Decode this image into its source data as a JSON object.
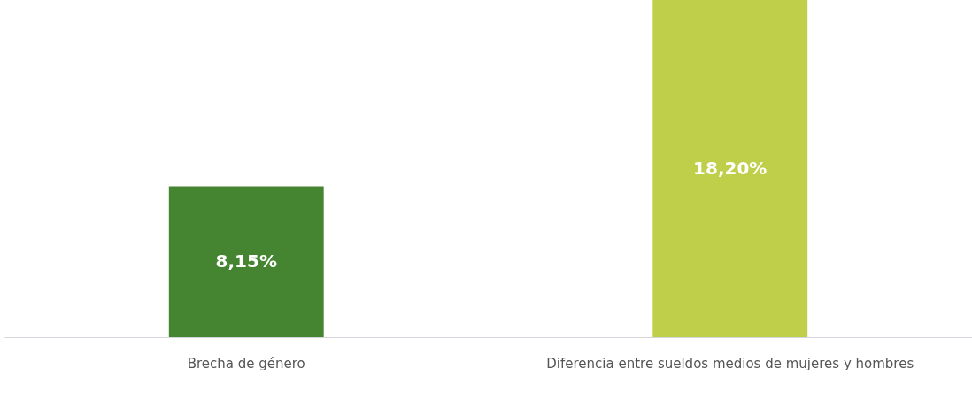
{
  "chart_data": {
    "type": "bar",
    "categories": [
      "Brecha de género",
      "Diferencia entre sueldos medios de mujeres y hombres"
    ],
    "values": [
      8.15,
      18.2
    ],
    "colors": [
      "#458531",
      "#c0cf4a"
    ],
    "value_labels": [
      "8,15%",
      "18,20%"
    ],
    "ylim": [
      0,
      18.2
    ]
  }
}
